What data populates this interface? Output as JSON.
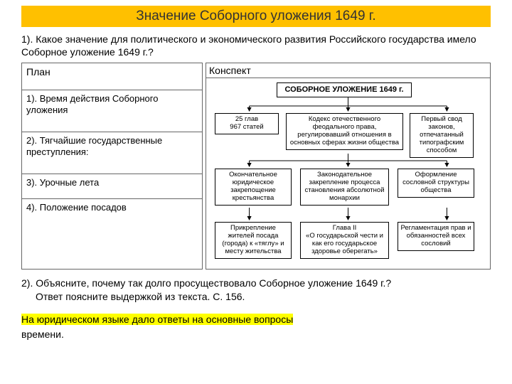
{
  "title": "Значение Соборного уложения 1649 г.",
  "q1": "1). Какое значение для политического и экономического развития Российского государства имело Соборное уложение 1649 г.?",
  "table": {
    "h1": "План",
    "h2": "Конспект",
    "r1": "1). Время действия Соборного уложения",
    "r2": "2). Тягчайшие государственные преступления:",
    "r3": "3). Урочные лета",
    "r4": "4). Положение посадов"
  },
  "diagram": {
    "bg": "#ffffff",
    "line_color": "#000000",
    "arrow_color": "#000000",
    "font_size": 9.5,
    "title_font_size": 11,
    "title": "СОБОРНОЕ УЛОЖЕНИЕ 1649 г.",
    "row1": {
      "a": "25 глав\n967 статей",
      "b": "Кодекс отечественного феодального права, регулировавший отношения в основных сферах жизни общества",
      "c": "Первый свод законов, отпечатанный типографским способом"
    },
    "row2": {
      "a": "Окончательное юридическое закрепощение крестьянства",
      "b": "Законодательное закрепление процесса становления абсолютной монархии",
      "c": "Оформление сословной структуры общества"
    },
    "row3": {
      "a": "Прикрепление жителей посада (города) к «тяглу» и месту жительства",
      "b": "Глава II\n«О государьской чести и как его государьское здоровье оберегать»",
      "c": "Регламентация прав и обязанностей всех сословий"
    }
  },
  "q2": "2). Объясните, почему так долго просуществовало Соборное уложение 1649 г.?",
  "q2b": "Ответ поясните  выдержкой из текста. С. 156.",
  "answer_hl": "На юридическом языке дало ответы на основные вопросы",
  "answer_rest": "времени.",
  "colors": {
    "title_bg": "#ffc000",
    "highlight_bg": "#ffff00",
    "border": "#666666"
  }
}
